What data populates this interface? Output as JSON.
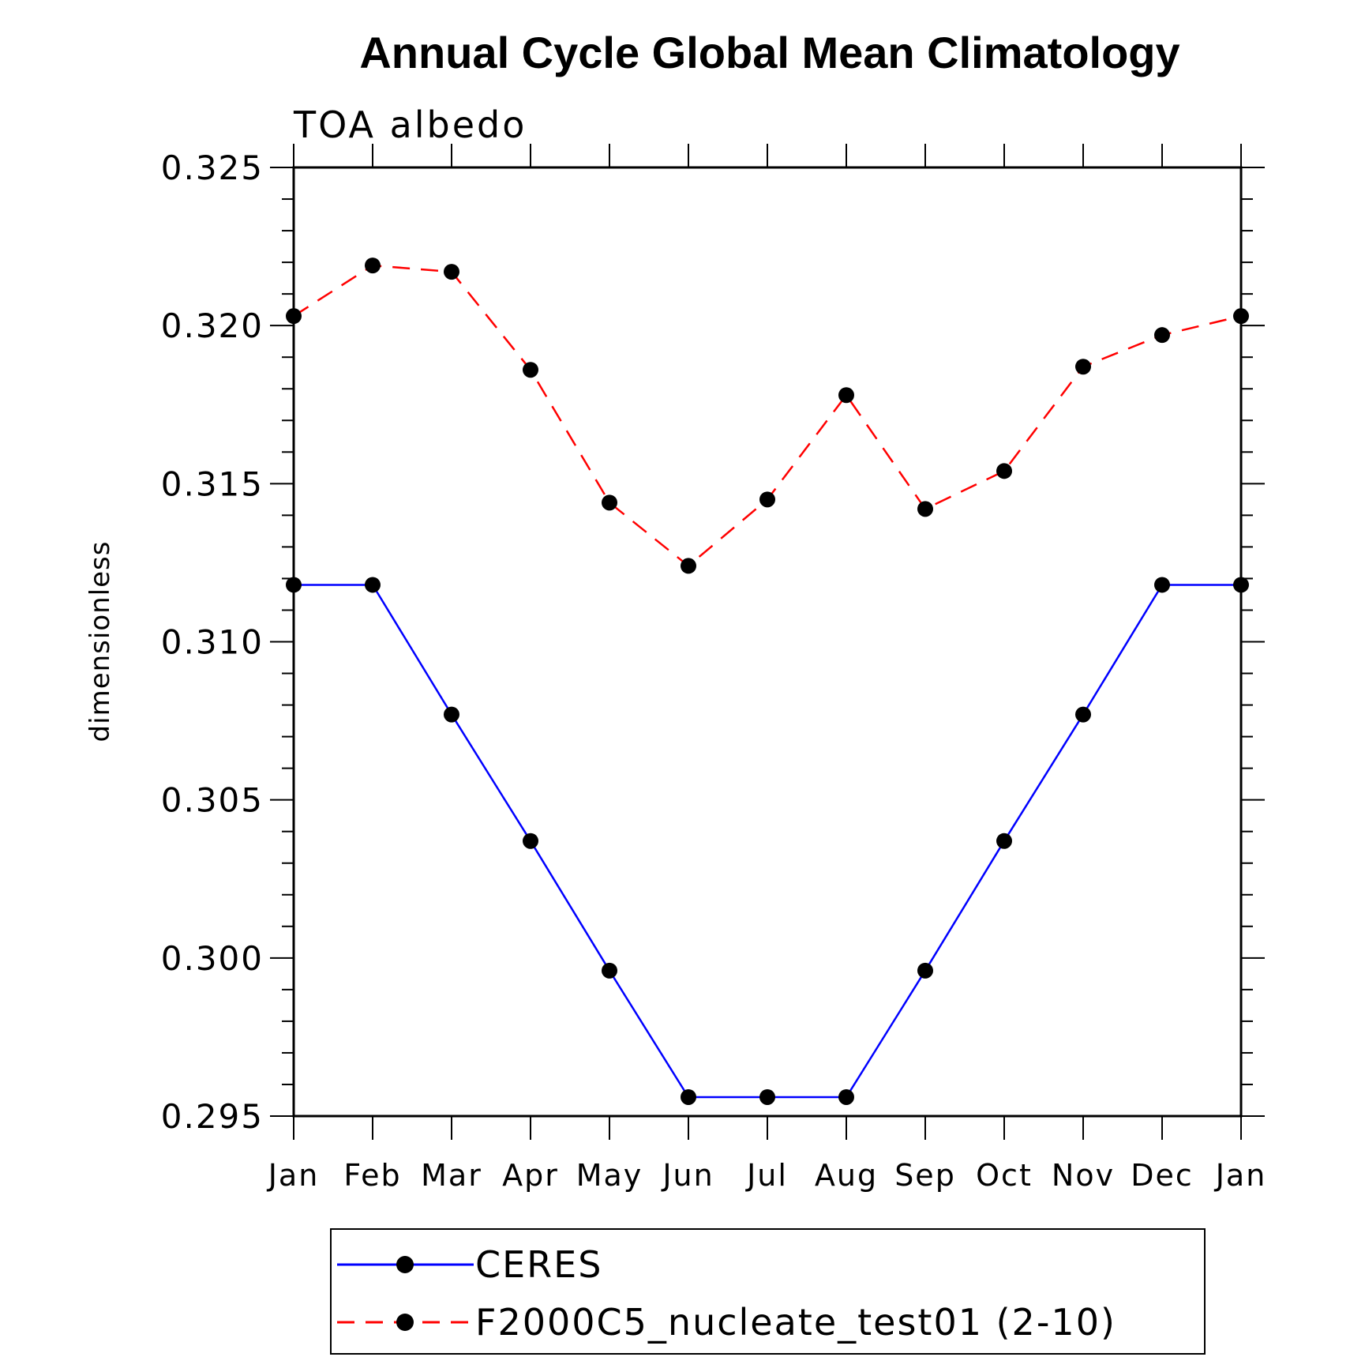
{
  "chart_data": {
    "type": "line",
    "title": "Annual Cycle Global Mean Climatology",
    "subtitle": "TOA albedo",
    "xlabel": "",
    "ylabel": "dimensionless",
    "categories": [
      "Jan",
      "Feb",
      "Mar",
      "Apr",
      "May",
      "Jun",
      "Jul",
      "Aug",
      "Sep",
      "Oct",
      "Nov",
      "Dec",
      "Jan"
    ],
    "ylim": [
      0.295,
      0.325
    ],
    "yticks": [
      "0.325",
      "0.320",
      "0.315",
      "0.310",
      "0.305",
      "0.300",
      "0.295"
    ],
    "legend_position": "bottom",
    "series": [
      {
        "name": "CERES",
        "color": "#0000ff",
        "dash": "solid",
        "marker": "circle",
        "values": [
          0.3118,
          0.3118,
          0.3077,
          0.3037,
          0.2996,
          0.2956,
          0.2956,
          0.2956,
          0.2996,
          0.3037,
          0.3077,
          0.3118,
          0.3118
        ]
      },
      {
        "name": "F2000C5_nucleate_test01 (2-10)",
        "color": "#ff0000",
        "dash": "dashed",
        "marker": "circle",
        "values": [
          0.3203,
          0.3219,
          0.3217,
          0.3186,
          0.3144,
          0.3124,
          0.3145,
          0.3178,
          0.3142,
          0.3154,
          0.3187,
          0.3197,
          0.3203
        ]
      }
    ]
  }
}
